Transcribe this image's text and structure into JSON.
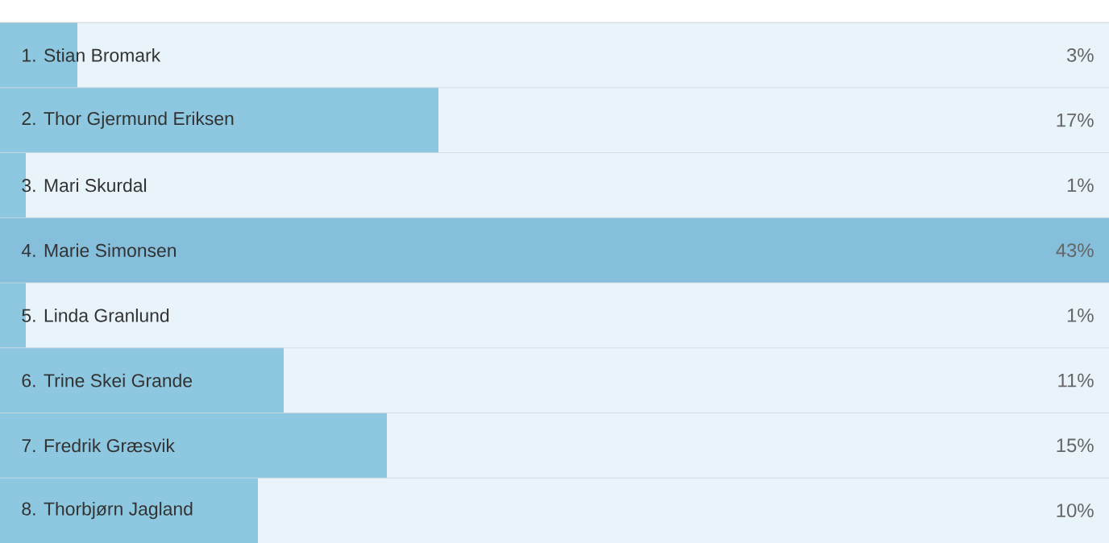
{
  "chart_data": {
    "type": "bar",
    "orientation": "horizontal",
    "relative": false,
    "categories": [
      "1. Stian Bromark",
      "2. Thor Gjermund Eriksen",
      "3. Mari Skurdal",
      "4. Marie Simonsen",
      "5. Linda Granlund",
      "6. Trine Skei Grande",
      "7. Fredrik Græsvik",
      "8. Thorbjørn Jagland"
    ],
    "values": [
      3,
      17,
      1,
      43,
      1,
      11,
      15,
      10
    ],
    "value_labels": [
      "3%",
      "17%",
      "1%",
      "43%",
      "1%",
      "11%",
      "15%",
      "10%"
    ],
    "colors": [
      "#8ec8e0",
      "#8ec8e0",
      "#8ec8e0",
      "#86bfdc",
      "#8ec8e0",
      "#8ec8e0",
      "#8ec8e0",
      "#8ec8e0"
    ]
  }
}
